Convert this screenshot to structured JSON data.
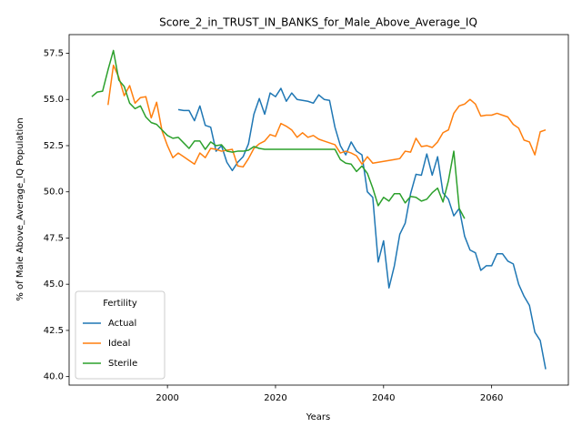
{
  "chart_data": {
    "type": "line",
    "title": "Score_2_in_TRUST_IN_BANKS_for_Male_Above_Average_IQ",
    "xlabel": "Years",
    "ylabel": "% of Male Above_Average_IQ Population",
    "legend_title": "Fertility",
    "legend_loc": "lower left",
    "xlim": [
      1981.8,
      2074.2
    ],
    "ylim": [
      39.54,
      58.51
    ],
    "xticks": [
      2000,
      2020,
      2040,
      2060
    ],
    "yticks": [
      {
        "value": 40,
        "label": "40.0"
      },
      42.5,
      {
        "value": 45,
        "label": "45.0"
      },
      47.5,
      {
        "value": 50,
        "label": "50.0"
      },
      52.5,
      {
        "value": 55,
        "label": "55.0"
      },
      57.5
    ],
    "series": [
      {
        "name": "Actual",
        "color": "#1f77b4",
        "x": [
          2002,
          2003,
          2004,
          2005,
          2006,
          2007,
          2008,
          2009,
          2010,
          2011,
          2012,
          2013,
          2014,
          2015,
          2016,
          2017,
          2018,
          2019,
          2020,
          2021,
          2022,
          2023,
          2024,
          2025,
          2026,
          2027,
          2028,
          2029,
          2030,
          2031,
          2032,
          2033,
          2034,
          2035,
          2036,
          2037,
          2038,
          2039,
          2040,
          2041,
          2042,
          2043,
          2044,
          2045,
          2046,
          2047,
          2048,
          2049,
          2050,
          2051,
          2052,
          2053,
          2054,
          2055,
          2056,
          2057,
          2058,
          2059,
          2060,
          2061,
          2062,
          2063,
          2064,
          2065,
          2066,
          2067,
          2068,
          2069,
          2070
        ],
        "values": [
          54.45,
          54.4,
          54.4,
          53.85,
          54.65,
          53.6,
          53.5,
          52.2,
          52.5,
          51.6,
          51.15,
          51.6,
          51.9,
          52.6,
          54.2,
          55.05,
          54.2,
          55.35,
          55.15,
          55.6,
          54.9,
          55.35,
          55.0,
          54.95,
          54.9,
          54.8,
          55.25,
          55.0,
          54.95,
          53.5,
          52.5,
          52.0,
          52.7,
          52.2,
          52.0,
          50.0,
          49.7,
          46.2,
          47.35,
          44.8,
          46.0,
          47.7,
          48.3,
          49.9,
          50.95,
          50.9,
          52.05,
          50.9,
          51.9,
          49.95,
          49.6,
          48.7,
          49.1,
          47.6,
          46.85,
          46.7,
          45.75,
          46.0,
          46.0,
          46.65,
          46.65,
          46.25,
          46.1,
          45.0,
          44.35,
          43.85,
          42.4,
          41.95,
          40.4
        ]
      },
      {
        "name": "Ideal",
        "color": "#ff7f0e",
        "x": [
          1989,
          1990,
          1991,
          1992,
          1993,
          1994,
          1995,
          1996,
          1997,
          1998,
          1999,
          2000,
          2001,
          2002,
          2003,
          2004,
          2005,
          2006,
          2007,
          2008,
          2009,
          2010,
          2011,
          2012,
          2013,
          2014,
          2015,
          2016,
          2017,
          2018,
          2019,
          2020,
          2021,
          2022,
          2023,
          2024,
          2025,
          2026,
          2027,
          2028,
          2029,
          2030,
          2031,
          2032,
          2033,
          2034,
          2035,
          2036,
          2037,
          2038,
          2039,
          2040,
          2041,
          2042,
          2043,
          2044,
          2045,
          2046,
          2047,
          2048,
          2049,
          2050,
          2051,
          2052,
          2053,
          2054,
          2055,
          2056,
          2057,
          2058,
          2059,
          2060,
          2061,
          2062,
          2063,
          2064,
          2065,
          2066,
          2067,
          2068,
          2069,
          2070
        ],
        "values": [
          54.7,
          56.85,
          56.2,
          55.2,
          55.75,
          54.8,
          55.1,
          55.15,
          54.0,
          54.85,
          53.3,
          52.5,
          51.85,
          52.1,
          51.9,
          51.7,
          51.5,
          52.1,
          51.85,
          52.35,
          52.3,
          52.2,
          52.25,
          52.3,
          51.4,
          51.35,
          51.8,
          52.35,
          52.6,
          52.75,
          53.1,
          53.0,
          53.7,
          53.55,
          53.35,
          52.95,
          53.2,
          52.95,
          53.05,
          52.85,
          52.75,
          52.65,
          52.55,
          52.1,
          52.2,
          52.1,
          51.95,
          51.5,
          51.9,
          51.55,
          51.6,
          51.65,
          51.7,
          51.75,
          51.8,
          52.2,
          52.15,
          52.9,
          52.45,
          52.5,
          52.4,
          52.7,
          53.2,
          53.35,
          54.25,
          54.65,
          54.75,
          55.0,
          54.75,
          54.1,
          54.15,
          54.15,
          54.25,
          54.15,
          54.05,
          53.65,
          53.45,
          52.8,
          52.7,
          52.0,
          53.25,
          53.35
        ]
      },
      {
        "name": "Sterile",
        "color": "#2ca02c",
        "x": [
          1986,
          1987,
          1988,
          1989,
          1990,
          1991,
          1992,
          1993,
          1994,
          1995,
          1996,
          1997,
          1998,
          1999,
          2000,
          2001,
          2002,
          2003,
          2004,
          2005,
          2006,
          2007,
          2008,
          2009,
          2010,
          2011,
          2012,
          2013,
          2014,
          2015,
          2016,
          2017,
          2018,
          2019,
          2020,
          2021,
          2022,
          2023,
          2024,
          2025,
          2026,
          2027,
          2028,
          2029,
          2030,
          2031,
          2032,
          2033,
          2034,
          2035,
          2036,
          2037,
          2038,
          2039,
          2040,
          2041,
          2042,
          2043,
          2044,
          2045,
          2046,
          2047,
          2048,
          2049,
          2050,
          2051,
          2052,
          2053,
          2054,
          2055
        ],
        "values": [
          55.15,
          55.4,
          55.45,
          56.6,
          57.65,
          56.05,
          55.7,
          54.8,
          54.5,
          54.65,
          54.05,
          53.75,
          53.65,
          53.35,
          53.05,
          52.9,
          52.95,
          52.65,
          52.35,
          52.75,
          52.75,
          52.3,
          52.7,
          52.5,
          52.55,
          52.2,
          52.15,
          52.2,
          52.2,
          52.25,
          52.45,
          52.35,
          52.3,
          52.3,
          52.3,
          52.3,
          52.3,
          52.3,
          52.3,
          52.3,
          52.3,
          52.3,
          52.3,
          52.3,
          52.3,
          52.3,
          51.75,
          51.55,
          51.5,
          51.1,
          51.4,
          51.0,
          50.2,
          49.25,
          49.7,
          49.5,
          49.9,
          49.9,
          49.4,
          49.75,
          49.7,
          49.5,
          49.6,
          49.95,
          50.2,
          49.45,
          50.6,
          52.2,
          49.1,
          48.55
        ]
      }
    ]
  }
}
